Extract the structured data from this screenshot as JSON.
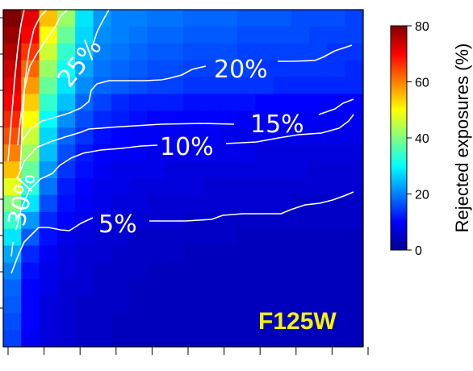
{
  "chart_data": {
    "type": "heatmap",
    "panel_label": "F125W",
    "colorbar": {
      "label": "Rejected exposures (%)",
      "range": [
        0,
        80
      ],
      "ticks": [
        0,
        20,
        40,
        60,
        80
      ],
      "colors": [
        "#00008f",
        "#0000ff",
        "#0080ff",
        "#00ffff",
        "#80ff80",
        "#ffff00",
        "#ff8000",
        "#ff0000",
        "#800000"
      ]
    },
    "contours": [
      {
        "level": 5,
        "label": "5%"
      },
      {
        "level": 10,
        "label": "10%"
      },
      {
        "level": 15,
        "label": "15%"
      },
      {
        "level": 20,
        "label": "20%"
      },
      {
        "level": 25,
        "label": "25%"
      },
      {
        "level": 30,
        "label": "30%"
      }
    ],
    "grid_columns": 20,
    "grid_rows": 20,
    "grid_values": [
      [
        80,
        72,
        55,
        42,
        28,
        22,
        20,
        20,
        19,
        19,
        18,
        18,
        18,
        17,
        17,
        17,
        16,
        16,
        16,
        15
      ],
      [
        78,
        70,
        50,
        38,
        27,
        21,
        20,
        19,
        18,
        18,
        17,
        17,
        17,
        16,
        16,
        16,
        16,
        15,
        15,
        15
      ],
      [
        76,
        66,
        46,
        34,
        25,
        20,
        19,
        18,
        17,
        17,
        16,
        16,
        16,
        15,
        15,
        15,
        15,
        15,
        14,
        14
      ],
      [
        74,
        62,
        42,
        31,
        23,
        19,
        18,
        17,
        16,
        16,
        15,
        15,
        15,
        15,
        14,
        14,
        14,
        14,
        14,
        13
      ],
      [
        72,
        58,
        38,
        28,
        21,
        18,
        17,
        16,
        15,
        15,
        14,
        14,
        14,
        14,
        14,
        13,
        13,
        13,
        13,
        13
      ],
      [
        70,
        54,
        34,
        25,
        18,
        15,
        13,
        12,
        12,
        12,
        11,
        11,
        11,
        11,
        10,
        10,
        10,
        10,
        10,
        10
      ],
      [
        67,
        50,
        30,
        21,
        16,
        13,
        12,
        11,
        10,
        10,
        10,
        10,
        10,
        9,
        9,
        9,
        9,
        9,
        9,
        9
      ],
      [
        64,
        46,
        27,
        18,
        14,
        11,
        10,
        9,
        9,
        9,
        9,
        9,
        8,
        8,
        8,
        8,
        8,
        8,
        8,
        8
      ],
      [
        60,
        42,
        25,
        16,
        12,
        10,
        9,
        9,
        8,
        8,
        8,
        8,
        8,
        8,
        7,
        7,
        7,
        7,
        7,
        7
      ],
      [
        55,
        38,
        22,
        14,
        11,
        9,
        8,
        8,
        8,
        7,
        7,
        7,
        7,
        7,
        7,
        7,
        7,
        6,
        6,
        6
      ],
      [
        48,
        33,
        19,
        12,
        10,
        8,
        8,
        7,
        7,
        7,
        7,
        6,
        6,
        6,
        6,
        6,
        6,
        6,
        6,
        6
      ],
      [
        40,
        28,
        16,
        11,
        9,
        8,
        7,
        7,
        6,
        6,
        6,
        6,
        6,
        6,
        6,
        6,
        5,
        5,
        5,
        5
      ],
      [
        34,
        22,
        13,
        10,
        8,
        7,
        6,
        6,
        6,
        6,
        5,
        5,
        5,
        5,
        5,
        5,
        5,
        5,
        5,
        5
      ],
      [
        28,
        17,
        11,
        8,
        7,
        6,
        6,
        5,
        5,
        5,
        5,
        5,
        5,
        4,
        4,
        4,
        4,
        4,
        4,
        4
      ],
      [
        23,
        13,
        9,
        7,
        6,
        6,
        5,
        5,
        5,
        5,
        4,
        4,
        4,
        4,
        4,
        4,
        4,
        4,
        4,
        4
      ],
      [
        20,
        11,
        8,
        7,
        6,
        5,
        5,
        5,
        4,
        4,
        4,
        4,
        4,
        4,
        4,
        4,
        4,
        4,
        4,
        4
      ],
      [
        18,
        10,
        8,
        6,
        6,
        5,
        5,
        4,
        4,
        4,
        4,
        4,
        4,
        4,
        4,
        4,
        4,
        4,
        4,
        4
      ],
      [
        17,
        10,
        7,
        6,
        5,
        5,
        5,
        4,
        4,
        4,
        4,
        4,
        4,
        4,
        4,
        4,
        4,
        4,
        4,
        4
      ],
      [
        16,
        10,
        7,
        6,
        5,
        5,
        4,
        4,
        4,
        4,
        4,
        4,
        4,
        4,
        4,
        4,
        4,
        4,
        4,
        4
      ],
      [
        15,
        9,
        7,
        6,
        5,
        5,
        4,
        4,
        4,
        4,
        4,
        4,
        4,
        4,
        4,
        4,
        4,
        4,
        4,
        4
      ]
    ]
  }
}
